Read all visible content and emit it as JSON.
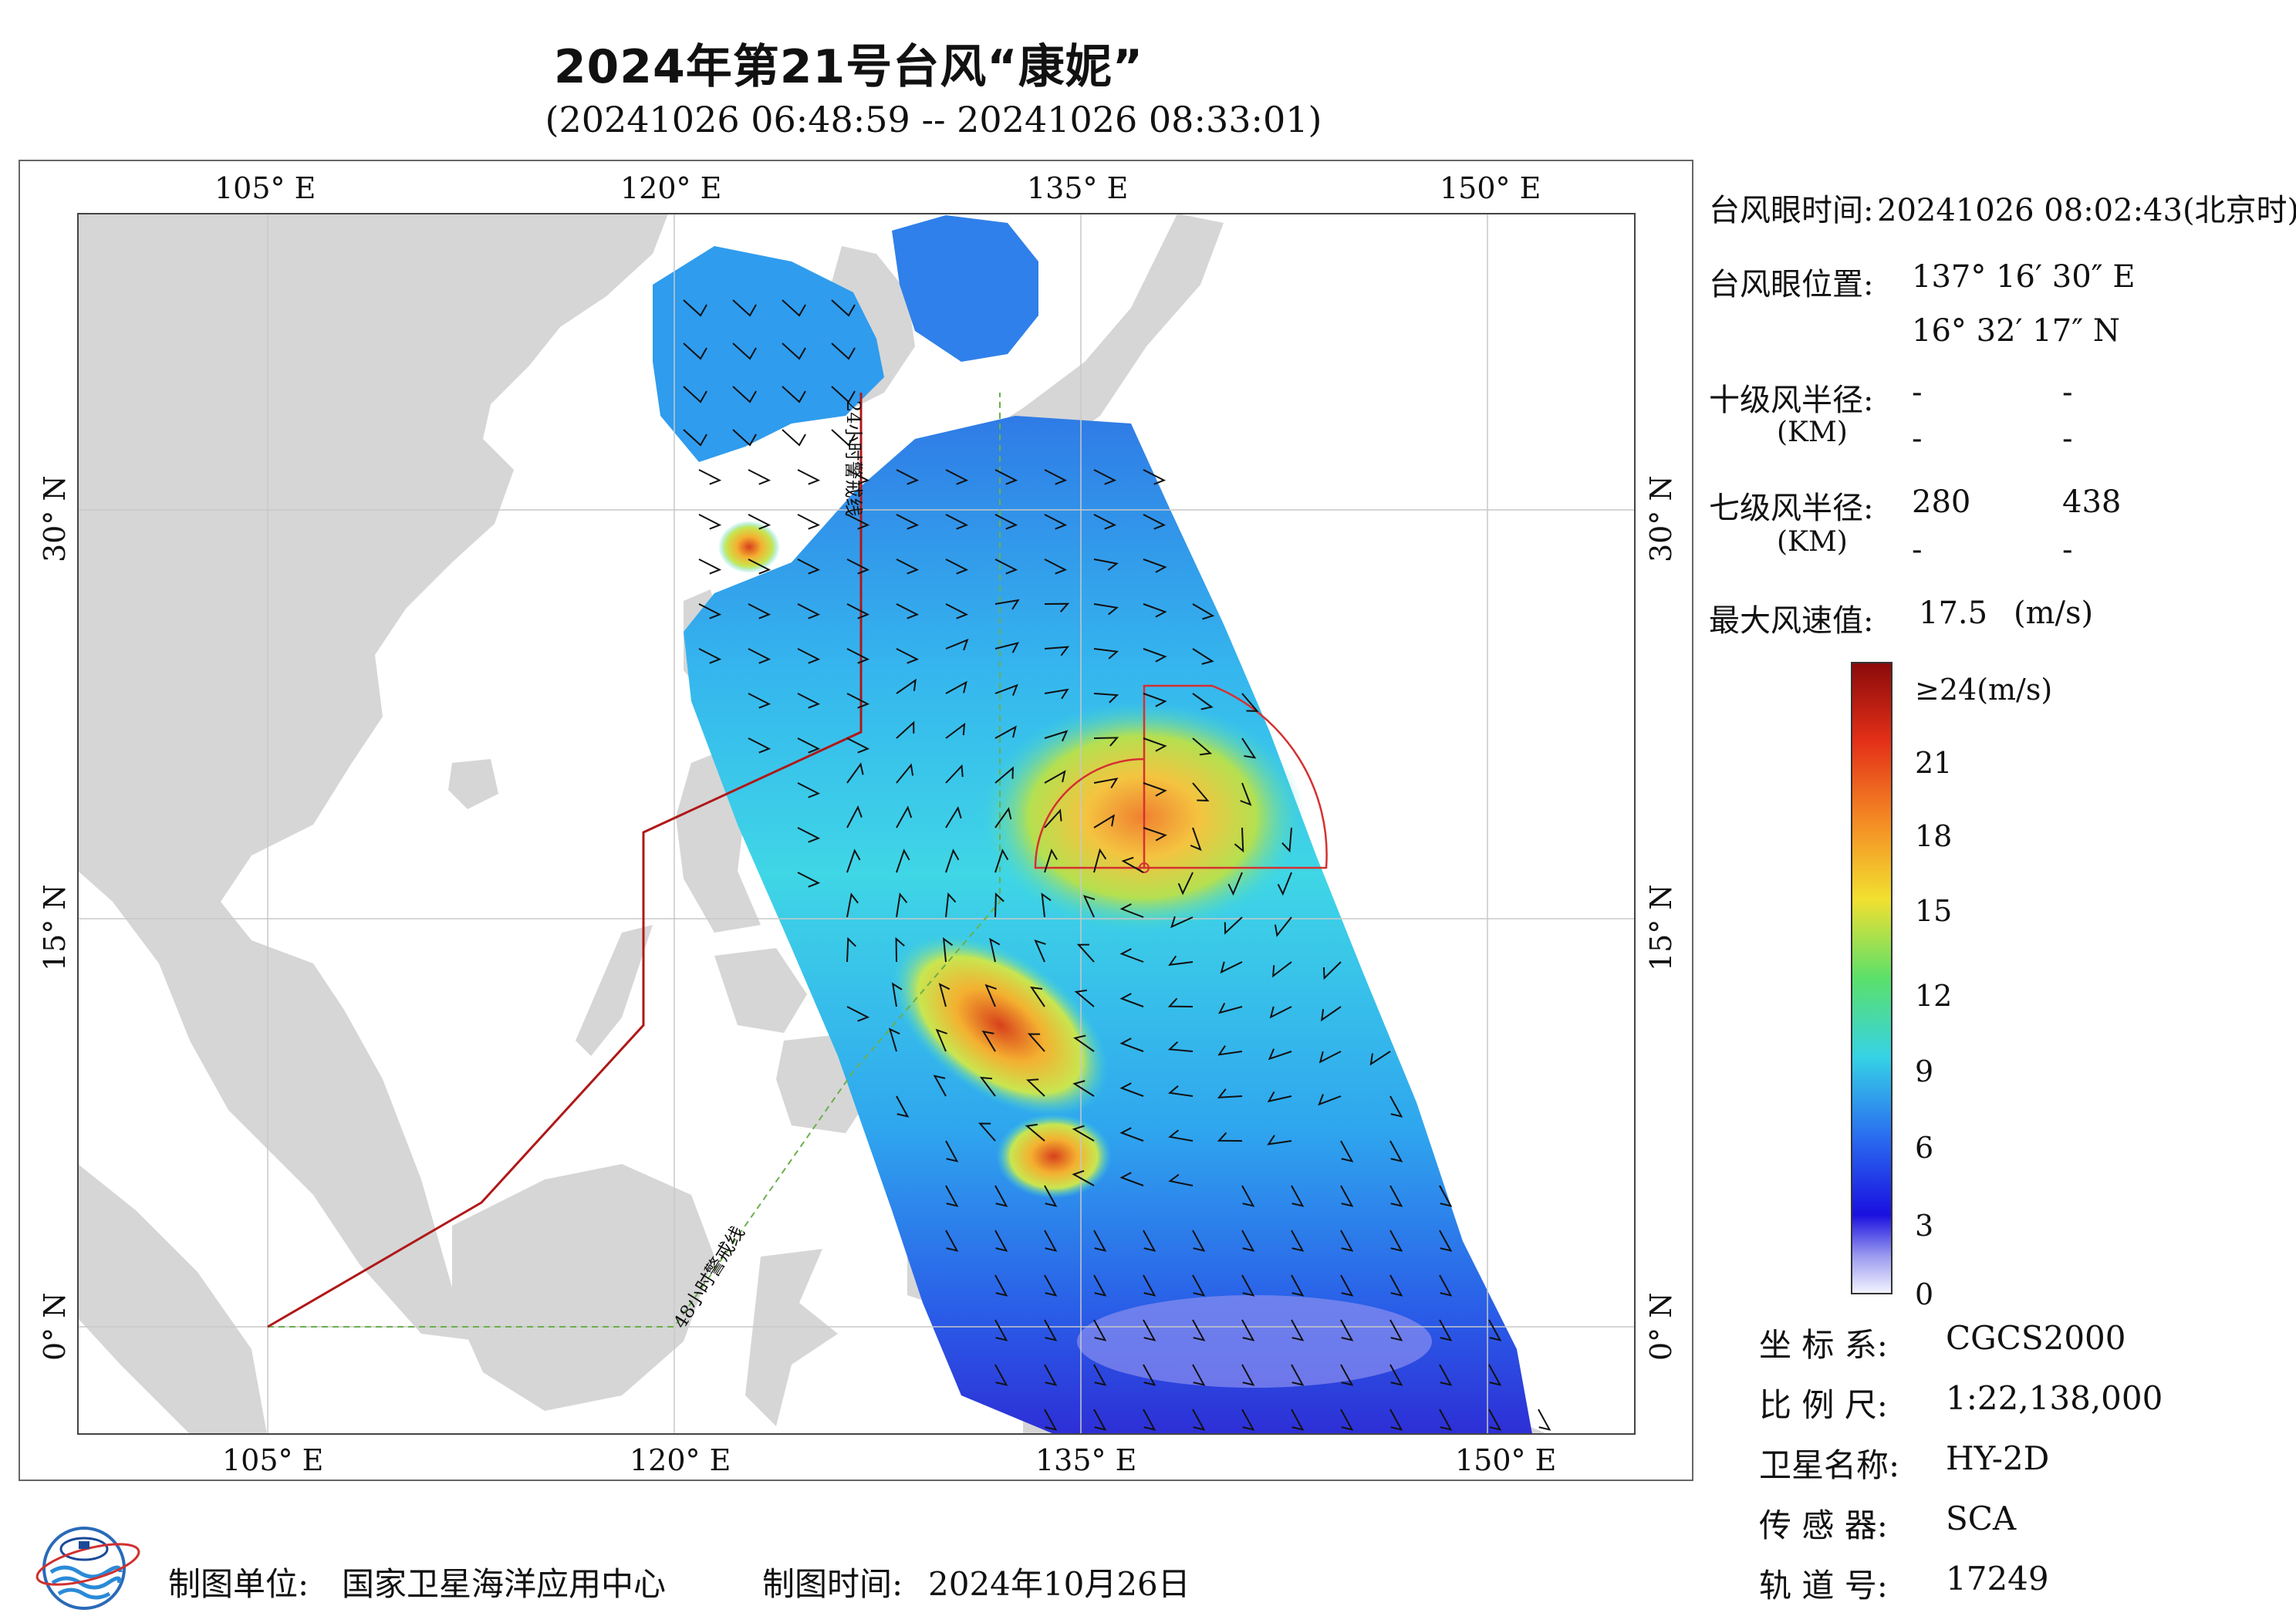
{
  "header": {
    "title": "2024年第21号台风“康妮”",
    "subtitle": "(20241026 06:48:59 -- 20241026 08:33:01)"
  },
  "map": {
    "lon_labels": [
      "105° E",
      "120° E",
      "135° E",
      "150° E"
    ],
    "lat_labels": [
      "30° N",
      "15° N",
      "0° N"
    ],
    "line_24h": "24小时警戒线",
    "line_48h": "48小时警戒线",
    "colors": {
      "land": "#d6d6d6",
      "ocean": "#ffffff",
      "line_24h": "#b01818",
      "line_48h": "#6ab04c",
      "wind_radius": "#d63030"
    }
  },
  "info": {
    "eye_time_label": "台风眼时间:",
    "eye_time_value": "20241026 08:02:43(北京时)",
    "eye_pos_label": "台风眼位置:",
    "eye_lon": "137° 16′ 30″ E",
    "eye_lat": "16° 32′ 17″ N",
    "r10_label": "十级风半径:",
    "r10_unit": "(KM)",
    "r10_values": [
      "-",
      "-",
      "-",
      "-"
    ],
    "r7_label": "七级风半径:",
    "r7_unit": "(KM)",
    "r7_values": [
      "280",
      "438",
      "-",
      "-"
    ],
    "max_wind_label": "最大风速值:",
    "max_wind_value": "17.5",
    "max_wind_unit": "(m/s)"
  },
  "colorbar": {
    "ticks": [
      "≥24(m/s)",
      "21",
      "18",
      "15",
      "12",
      "9",
      "6",
      "3",
      "0"
    ]
  },
  "meta": {
    "crs_label": "坐 标 系:",
    "crs_value": "CGCS2000",
    "scale_label": "比 例 尺:",
    "scale_value": "1:22,138,000",
    "sat_label": "卫星名称:",
    "sat_value": "HY-2D",
    "sensor_label": "传 感 器:",
    "sensor_value": "SCA",
    "orbit_label": "轨 道 号:",
    "orbit_value": "17249"
  },
  "footer": {
    "unit_label": "制图单位:",
    "unit_value": "国家卫星海洋应用中心",
    "time_label": "制图时间:",
    "time_value": "2024年10月26日"
  }
}
